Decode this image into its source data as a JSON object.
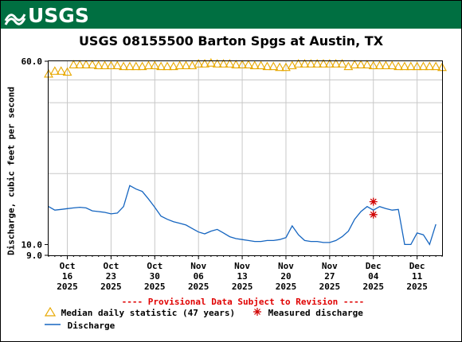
{
  "banner": {
    "logo_text": "USGS",
    "color": "#006f41"
  },
  "chart_data": {
    "type": "line",
    "title": "USGS 08155500 Barton Spgs at Austin, TX",
    "ylabel": "Discharge, cubic feet per second",
    "y_scale": "log",
    "ylim": [
      9.0,
      60.0
    ],
    "y_tick_labels": [
      "60.0",
      "10.0",
      "9.0"
    ],
    "x_range": [
      "2025-10-13",
      "2025-12-15"
    ],
    "x_ticks": [
      {
        "date": "2025-10-16",
        "lines": [
          "Oct",
          "16",
          "2025"
        ]
      },
      {
        "date": "2025-10-23",
        "lines": [
          "Oct",
          "23",
          "2025"
        ]
      },
      {
        "date": "2025-10-30",
        "lines": [
          "Oct",
          "30",
          "2025"
        ]
      },
      {
        "date": "2025-11-06",
        "lines": [
          "Nov",
          "06",
          "2025"
        ]
      },
      {
        "date": "2025-11-13",
        "lines": [
          "Nov",
          "13",
          "2025"
        ]
      },
      {
        "date": "2025-11-20",
        "lines": [
          "Nov",
          "20",
          "2025"
        ]
      },
      {
        "date": "2025-11-27",
        "lines": [
          "Nov",
          "27",
          "2025"
        ]
      },
      {
        "date": "2025-12-04",
        "lines": [
          "Dec",
          "04",
          "2025"
        ]
      },
      {
        "date": "2025-12-11",
        "lines": [
          "Dec",
          "11",
          "2025"
        ]
      }
    ],
    "grid": true,
    "series": [
      {
        "name": "Median daily statistic (47 years)",
        "marker": "triangle",
        "color": "#e8a800",
        "x": [
          "2025-10-13",
          "2025-10-14",
          "2025-10-15",
          "2025-10-16",
          "2025-10-17",
          "2025-10-18",
          "2025-10-19",
          "2025-10-20",
          "2025-10-21",
          "2025-10-22",
          "2025-10-23",
          "2025-10-24",
          "2025-10-25",
          "2025-10-26",
          "2025-10-27",
          "2025-10-28",
          "2025-10-29",
          "2025-10-30",
          "2025-10-31",
          "2025-11-01",
          "2025-11-02",
          "2025-11-03",
          "2025-11-04",
          "2025-11-05",
          "2025-11-06",
          "2025-11-07",
          "2025-11-08",
          "2025-11-09",
          "2025-11-10",
          "2025-11-11",
          "2025-11-12",
          "2025-11-13",
          "2025-11-14",
          "2025-11-15",
          "2025-11-16",
          "2025-11-17",
          "2025-11-18",
          "2025-11-19",
          "2025-11-20",
          "2025-11-21",
          "2025-11-22",
          "2025-11-23",
          "2025-11-24",
          "2025-11-25",
          "2025-11-26",
          "2025-11-27",
          "2025-11-28",
          "2025-11-29",
          "2025-11-30",
          "2025-12-01",
          "2025-12-02",
          "2025-12-03",
          "2025-12-04",
          "2025-12-05",
          "2025-12-06",
          "2025-12-07",
          "2025-12-08",
          "2025-12-09",
          "2025-12-10",
          "2025-12-11",
          "2025-12-12",
          "2025-12-13",
          "2025-12-14",
          "2025-12-15"
        ],
        "values": [
          53.0,
          54.5,
          54.5,
          54.0,
          58.0,
          58.0,
          58.0,
          58.0,
          57.5,
          57.5,
          57.5,
          57.5,
          57.0,
          57.0,
          57.0,
          57.0,
          57.5,
          57.5,
          57.0,
          57.0,
          57.0,
          57.5,
          57.5,
          57.5,
          58.5,
          58.5,
          59.0,
          58.5,
          58.5,
          58.5,
          58.0,
          58.0,
          58.0,
          57.5,
          57.5,
          57.0,
          57.0,
          56.5,
          56.5,
          57.5,
          58.5,
          58.5,
          58.5,
          58.5,
          58.5,
          58.5,
          58.5,
          58.5,
          57.0,
          58.0,
          58.0,
          58.0,
          57.5,
          57.5,
          57.5,
          57.5,
          57.0,
          57.0,
          57.0,
          57.0,
          57.0,
          57.0,
          57.0,
          56.5
        ]
      },
      {
        "name": "Discharge",
        "marker": "none",
        "color": "#1565c0",
        "x": [
          "2025-10-13",
          "2025-10-14",
          "2025-10-15",
          "2025-10-16",
          "2025-10-17",
          "2025-10-18",
          "2025-10-19",
          "2025-10-20",
          "2025-10-21",
          "2025-10-22",
          "2025-10-23",
          "2025-10-24",
          "2025-10-25",
          "2025-10-26",
          "2025-10-27",
          "2025-10-28",
          "2025-10-29",
          "2025-10-30",
          "2025-10-31",
          "2025-11-01",
          "2025-11-02",
          "2025-11-03",
          "2025-11-04",
          "2025-11-05",
          "2025-11-06",
          "2025-11-07",
          "2025-11-08",
          "2025-11-09",
          "2025-11-10",
          "2025-11-11",
          "2025-11-12",
          "2025-11-13",
          "2025-11-14",
          "2025-11-15",
          "2025-11-16",
          "2025-11-17",
          "2025-11-18",
          "2025-11-19",
          "2025-11-20",
          "2025-11-21",
          "2025-11-22",
          "2025-11-23",
          "2025-11-24",
          "2025-11-25",
          "2025-11-26",
          "2025-11-27",
          "2025-11-28",
          "2025-11-29",
          "2025-11-30",
          "2025-12-01",
          "2025-12-02",
          "2025-12-03",
          "2025-12-04",
          "2025-12-05",
          "2025-12-06",
          "2025-12-07",
          "2025-12-08",
          "2025-12-09",
          "2025-12-10",
          "2025-12-11",
          "2025-12-12",
          "2025-12-13",
          "2025-12-14"
        ],
        "values": [
          14.5,
          14.0,
          14.1,
          14.2,
          14.3,
          14.4,
          14.3,
          13.9,
          13.8,
          13.7,
          13.5,
          13.6,
          14.5,
          17.8,
          17.2,
          16.8,
          15.6,
          14.4,
          13.2,
          12.8,
          12.5,
          12.3,
          12.1,
          11.7,
          11.3,
          11.1,
          11.4,
          11.6,
          11.2,
          10.8,
          10.6,
          10.5,
          10.4,
          10.3,
          10.3,
          10.4,
          10.4,
          10.5,
          10.7,
          12.0,
          11.0,
          10.4,
          10.3,
          10.3,
          10.2,
          10.2,
          10.4,
          10.8,
          11.4,
          12.8,
          13.8,
          14.5,
          14.0,
          14.5,
          14.2,
          14.0,
          14.1,
          10.0,
          10.0,
          11.2,
          11.0,
          10.0,
          12.2
        ]
      },
      {
        "name": "Measured discharge",
        "marker": "star",
        "color": "#d00000",
        "x": [
          "2025-12-04",
          "2025-12-04"
        ],
        "values": [
          15.2,
          13.4
        ]
      }
    ],
    "legend_position": "bottom",
    "annotation": "---- Provisional Data Subject to Revision ----"
  }
}
